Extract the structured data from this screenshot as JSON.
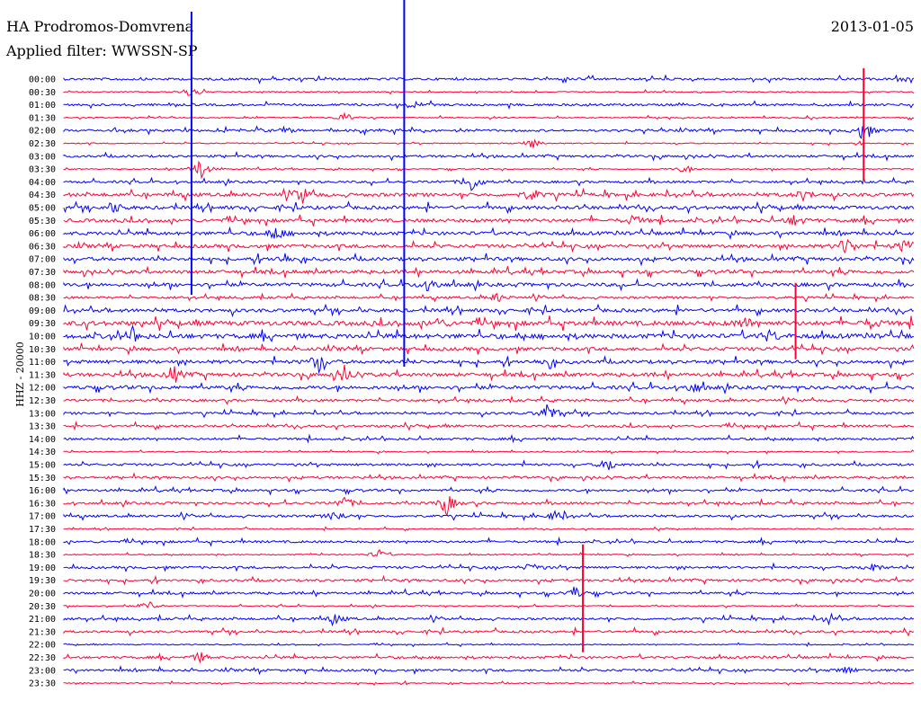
{
  "header": {
    "station": "HA Prodromos-Domvrena",
    "filter": "Applied filter: WWSSN-SP",
    "date": "2013-01-05"
  },
  "chart_data": {
    "type": "line",
    "title": "HA Prodromos-Domvrena",
    "subtitle": "Applied filter: WWSSN-SP",
    "ylabel": "HHZ - 20000",
    "xlabel": "",
    "grid": false,
    "legend": "none",
    "colors": [
      "#0000ff",
      "#ff0033"
    ],
    "categories": [
      "00:00",
      "00:30",
      "01:00",
      "01:30",
      "02:00",
      "02:30",
      "03:00",
      "03:30",
      "04:00",
      "04:30",
      "05:00",
      "05:30",
      "06:00",
      "06:30",
      "07:00",
      "07:30",
      "08:00",
      "08:30",
      "09:00",
      "09:30",
      "10:00",
      "10:30",
      "11:00",
      "11:30",
      "12:00",
      "12:30",
      "13:00",
      "13:30",
      "14:00",
      "14:30",
      "15:00",
      "15:30",
      "16:00",
      "16:30",
      "17:00",
      "17:30",
      "18:00",
      "18:30",
      "19:00",
      "19:30",
      "20:00",
      "20:30",
      "21:00",
      "21:30",
      "22:00",
      "22:30",
      "23:00",
      "23:30"
    ],
    "events": [
      {
        "row": 1,
        "pos": 0.15,
        "amp": 8
      },
      {
        "row": 3,
        "pos": 0.33,
        "amp": 6
      },
      {
        "row": 4,
        "pos": 0.26,
        "amp": 4
      },
      {
        "row": 4,
        "pos": 0.94,
        "amp": 12
      },
      {
        "row": 5,
        "pos": 0.55,
        "amp": 6
      },
      {
        "row": 7,
        "pos": 0.16,
        "amp": 14
      },
      {
        "row": 7,
        "pos": 0.73,
        "amp": 5
      },
      {
        "row": 8,
        "pos": 0.48,
        "amp": 12
      },
      {
        "row": 9,
        "pos": 0.28,
        "amp": 10
      },
      {
        "row": 9,
        "pos": 0.55,
        "amp": 8
      },
      {
        "row": 9,
        "pos": 0.87,
        "amp": 6
      },
      {
        "row": 10,
        "pos": 0.06,
        "amp": 6
      },
      {
        "row": 11,
        "pos": 0.67,
        "amp": 6
      },
      {
        "row": 11,
        "pos": 0.86,
        "amp": 7
      },
      {
        "row": 12,
        "pos": 0.25,
        "amp": 8
      },
      {
        "row": 13,
        "pos": 0.92,
        "amp": 12
      },
      {
        "row": 13,
        "pos": 0.99,
        "amp": 10
      },
      {
        "row": 14,
        "pos": 0.26,
        "amp": 6
      },
      {
        "row": 16,
        "pos": 0.43,
        "amp": 10
      },
      {
        "row": 17,
        "pos": 0.51,
        "amp": 5
      },
      {
        "row": 19,
        "pos": 0.44,
        "amp": 6
      },
      {
        "row": 19,
        "pos": 0.8,
        "amp": 7
      },
      {
        "row": 19,
        "pos": 0.95,
        "amp": 6
      },
      {
        "row": 20,
        "pos": 0.08,
        "amp": 8
      },
      {
        "row": 20,
        "pos": 0.83,
        "amp": 7
      },
      {
        "row": 22,
        "pos": 0.3,
        "amp": 12
      },
      {
        "row": 22,
        "pos": 0.57,
        "amp": 7
      },
      {
        "row": 23,
        "pos": 0.13,
        "amp": 9
      },
      {
        "row": 23,
        "pos": 0.33,
        "amp": 10
      },
      {
        "row": 24,
        "pos": 0.74,
        "amp": 7
      },
      {
        "row": 26,
        "pos": 0.57,
        "amp": 14
      },
      {
        "row": 30,
        "pos": 0.64,
        "amp": 8
      },
      {
        "row": 33,
        "pos": 0.33,
        "amp": 8
      },
      {
        "row": 33,
        "pos": 0.45,
        "amp": 14
      },
      {
        "row": 34,
        "pos": 0.32,
        "amp": 7
      },
      {
        "row": 34,
        "pos": 0.58,
        "amp": 8
      },
      {
        "row": 37,
        "pos": 0.37,
        "amp": 6
      },
      {
        "row": 38,
        "pos": 0.55,
        "amp": 6
      },
      {
        "row": 38,
        "pos": 0.95,
        "amp": 6
      },
      {
        "row": 40,
        "pos": 0.6,
        "amp": 8
      },
      {
        "row": 41,
        "pos": 0.1,
        "amp": 6
      },
      {
        "row": 42,
        "pos": 0.32,
        "amp": 6
      },
      {
        "row": 42,
        "pos": 0.9,
        "amp": 6
      },
      {
        "row": 45,
        "pos": 0.16,
        "amp": 6
      },
      {
        "row": 46,
        "pos": 0.92,
        "amp": 5
      }
    ],
    "spikes": [
      {
        "row": 0,
        "pos": 0.4,
        "up": 130,
        "down": 320
      },
      {
        "row": 0,
        "pos": 0.15,
        "up": 75,
        "down": 240
      },
      {
        "row": 3,
        "pos": 0.94,
        "up": 55,
        "down": 70
      },
      {
        "row": 39,
        "pos": 0.61,
        "up": 40,
        "down": 80
      },
      {
        "row": 19,
        "pos": 0.86,
        "up": 45,
        "down": 40
      }
    ],
    "noise_level": [
      2,
      1,
      2,
      1,
      2,
      1,
      2,
      1,
      2,
      3,
      3,
      3,
      3,
      3,
      3,
      3,
      3,
      2,
      3,
      4,
      4,
      3,
      3,
      3,
      3,
      2,
      2,
      2,
      2,
      1,
      2,
      2,
      2,
      2,
      2,
      1,
      2,
      1,
      2,
      2,
      2,
      1,
      2,
      2,
      1,
      2,
      2,
      1
    ]
  }
}
